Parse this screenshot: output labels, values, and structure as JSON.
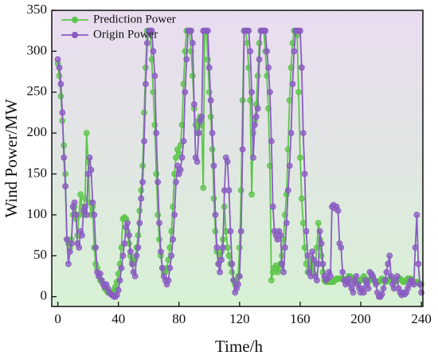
{
  "chart_data": {
    "type": "line",
    "xlabel": "Time/h",
    "ylabel": "Wind Power/MW",
    "xlim": [
      -4,
      241
    ],
    "ylim": [
      -12,
      350
    ],
    "xticks": [
      0,
      40,
      80,
      120,
      160,
      200,
      240
    ],
    "yticks": [
      0,
      50,
      100,
      150,
      200,
      250,
      300,
      350
    ],
    "legend": "upper left",
    "x": [
      0,
      1,
      2,
      3,
      4,
      5,
      6,
      7,
      8,
      9,
      10,
      11,
      12,
      13,
      14,
      15,
      16,
      17,
      18,
      19,
      20,
      21,
      22,
      23,
      24,
      25,
      26,
      27,
      28,
      29,
      30,
      31,
      32,
      33,
      34,
      35,
      36,
      37,
      38,
      39,
      40,
      41,
      42,
      43,
      44,
      45,
      46,
      47,
      48,
      49,
      50,
      51,
      52,
      53,
      54,
      55,
      56,
      57,
      58,
      59,
      60,
      61,
      62,
      63,
      64,
      65,
      66,
      67,
      68,
      69,
      70,
      71,
      72,
      73,
      74,
      75,
      76,
      77,
      78,
      79,
      80,
      81,
      82,
      83,
      84,
      85,
      86,
      87,
      88,
      89,
      90,
      91,
      92,
      93,
      94,
      95,
      96,
      97,
      98,
      99,
      100,
      101,
      102,
      103,
      104,
      105,
      106,
      107,
      108,
      109,
      110,
      111,
      112,
      113,
      114,
      115,
      116,
      117,
      118,
      119,
      120,
      121,
      122,
      123,
      124,
      125,
      126,
      127,
      128,
      129,
      130,
      131,
      132,
      133,
      134,
      135,
      136,
      137,
      138,
      139,
      140,
      141,
      142,
      143,
      144,
      145,
      146,
      147,
      148,
      149,
      150,
      151,
      152,
      153,
      154,
      155,
      156,
      157,
      158,
      159,
      160,
      161,
      162,
      163,
      164,
      165,
      166,
      167,
      168,
      169,
      170,
      171,
      172,
      173,
      174,
      175,
      176,
      177,
      178,
      179,
      180,
      181,
      182,
      183,
      184,
      185,
      186,
      187,
      188,
      189,
      190,
      191,
      192,
      193,
      194,
      195,
      196,
      197,
      198,
      199,
      200,
      201,
      202,
      203,
      204,
      205,
      206,
      207,
      208,
      209,
      210,
      211,
      212,
      213,
      214,
      215,
      216,
      217,
      218,
      219,
      220,
      221,
      222,
      223,
      224,
      225,
      226,
      227,
      228,
      229,
      230,
      231,
      232,
      233,
      234,
      235,
      236,
      237,
      238,
      239,
      240
    ],
    "series": [
      {
        "name": "Prediction Power",
        "color": "#5cc64a",
        "values": [
          285,
          270,
          245,
          215,
          185,
          150,
          70,
          65,
          60,
          70,
          100,
          110,
          95,
          75,
          100,
          125,
          110,
          100,
          120,
          200,
          165,
          115,
          100,
          110,
          60,
          40,
          35,
          25,
          20,
          18,
          15,
          10,
          8,
          5,
          5,
          5,
          5,
          8,
          12,
          18,
          28,
          40,
          60,
          95,
          97,
          95,
          80,
          65,
          50,
          45,
          40,
          45,
          60,
          75,
          105,
          130,
          160,
          225,
          280,
          325,
          325,
          325,
          290,
          250,
          210,
          150,
          100,
          70,
          50,
          35,
          30,
          30,
          35,
          45,
          60,
          80,
          110,
          150,
          170,
          180,
          175,
          185,
          210,
          260,
          300,
          325,
          325,
          325,
          300,
          270,
          230,
          210,
          200,
          215,
          220,
          210,
          133,
          325,
          325,
          290,
          250,
          220,
          180,
          120,
          80,
          55,
          40,
          50,
          55,
          70,
          110,
          80,
          60,
          50,
          40,
          30,
          20,
          15,
          18,
          25,
          60,
          130,
          240,
          325,
          325,
          310,
          280,
          240,
          125,
          200,
          215,
          235,
          270,
          310,
          325,
          325,
          325,
          300,
          270,
          230,
          160,
          20,
          30,
          35,
          38,
          30,
          35,
          40,
          50,
          70,
          100,
          125,
          180,
          240,
          280,
          310,
          325,
          325,
          320,
          250,
          170,
          120,
          90,
          60,
          40,
          30,
          35,
          45,
          35,
          28,
          40,
          60,
          90,
          70,
          50,
          30,
          20,
          18,
          18,
          18,
          18,
          18,
          18,
          20,
          22,
          22,
          22,
          22,
          22,
          20,
          20,
          22,
          25,
          25,
          22,
          20,
          18,
          18,
          18,
          18,
          20,
          22,
          25,
          22,
          18,
          18,
          20,
          22,
          22,
          20,
          18,
          18,
          18,
          20,
          22,
          20,
          18,
          18,
          20,
          22,
          22,
          20,
          18,
          18,
          20,
          22,
          22,
          20,
          18,
          18,
          20,
          22,
          22,
          22,
          20,
          18,
          18,
          18,
          17,
          16,
          15
        ]
      },
      {
        "name": "Origin Power",
        "color": "#8a5cc2",
        "values": [
          290,
          280,
          260,
          225,
          170,
          135,
          70,
          40,
          55,
          65,
          110,
          115,
          100,
          65,
          60,
          80,
          75,
          105,
          110,
          100,
          150,
          170,
          155,
          115,
          100,
          60,
          30,
          25,
          28,
          20,
          15,
          12,
          15,
          10,
          5,
          3,
          2,
          0,
          0,
          2,
          8,
          20,
          35,
          50,
          65,
          85,
          90,
          75,
          55,
          40,
          30,
          25,
          50,
          60,
          90,
          120,
          140,
          190,
          260,
          310,
          325,
          325,
          325,
          300,
          270,
          200,
          140,
          90,
          55,
          35,
          25,
          20,
          15,
          20,
          35,
          50,
          70,
          100,
          140,
          160,
          150,
          155,
          170,
          190,
          250,
          290,
          325,
          325,
          325,
          310,
          235,
          170,
          165,
          200,
          215,
          220,
          325,
          325,
          325,
          325,
          280,
          240,
          200,
          160,
          100,
          60,
          40,
          30,
          45,
          60,
          130,
          170,
          165,
          130,
          80,
          40,
          20,
          5,
          10,
          15,
          25,
          80,
          180,
          325,
          325,
          325,
          325,
          300,
          250,
          170,
          210,
          220,
          230,
          290,
          325,
          325,
          325,
          325,
          300,
          280,
          250,
          190,
          110,
          80,
          75,
          70,
          80,
          75,
          40,
          30,
          60,
          90,
          130,
          160,
          200,
          260,
          300,
          325,
          325,
          325,
          325,
          280,
          200,
          150,
          80,
          50,
          30,
          25,
          55,
          45,
          25,
          20,
          40,
          80,
          65,
          40,
          25,
          20,
          22,
          30,
          25,
          110,
          112,
          108,
          110,
          105,
          65,
          60,
          30,
          20,
          15,
          18,
          22,
          15,
          10,
          5,
          20,
          25,
          15,
          10,
          5,
          10,
          5,
          20,
          15,
          10,
          30,
          28,
          25,
          20,
          15,
          5,
          0,
          0,
          3,
          10,
          20,
          30,
          40,
          50,
          25,
          15,
          10,
          20,
          25,
          10,
          5,
          2,
          5,
          3,
          5,
          10,
          15,
          20,
          18,
          15,
          60,
          100,
          40,
          15,
          5
        ]
      }
    ]
  }
}
